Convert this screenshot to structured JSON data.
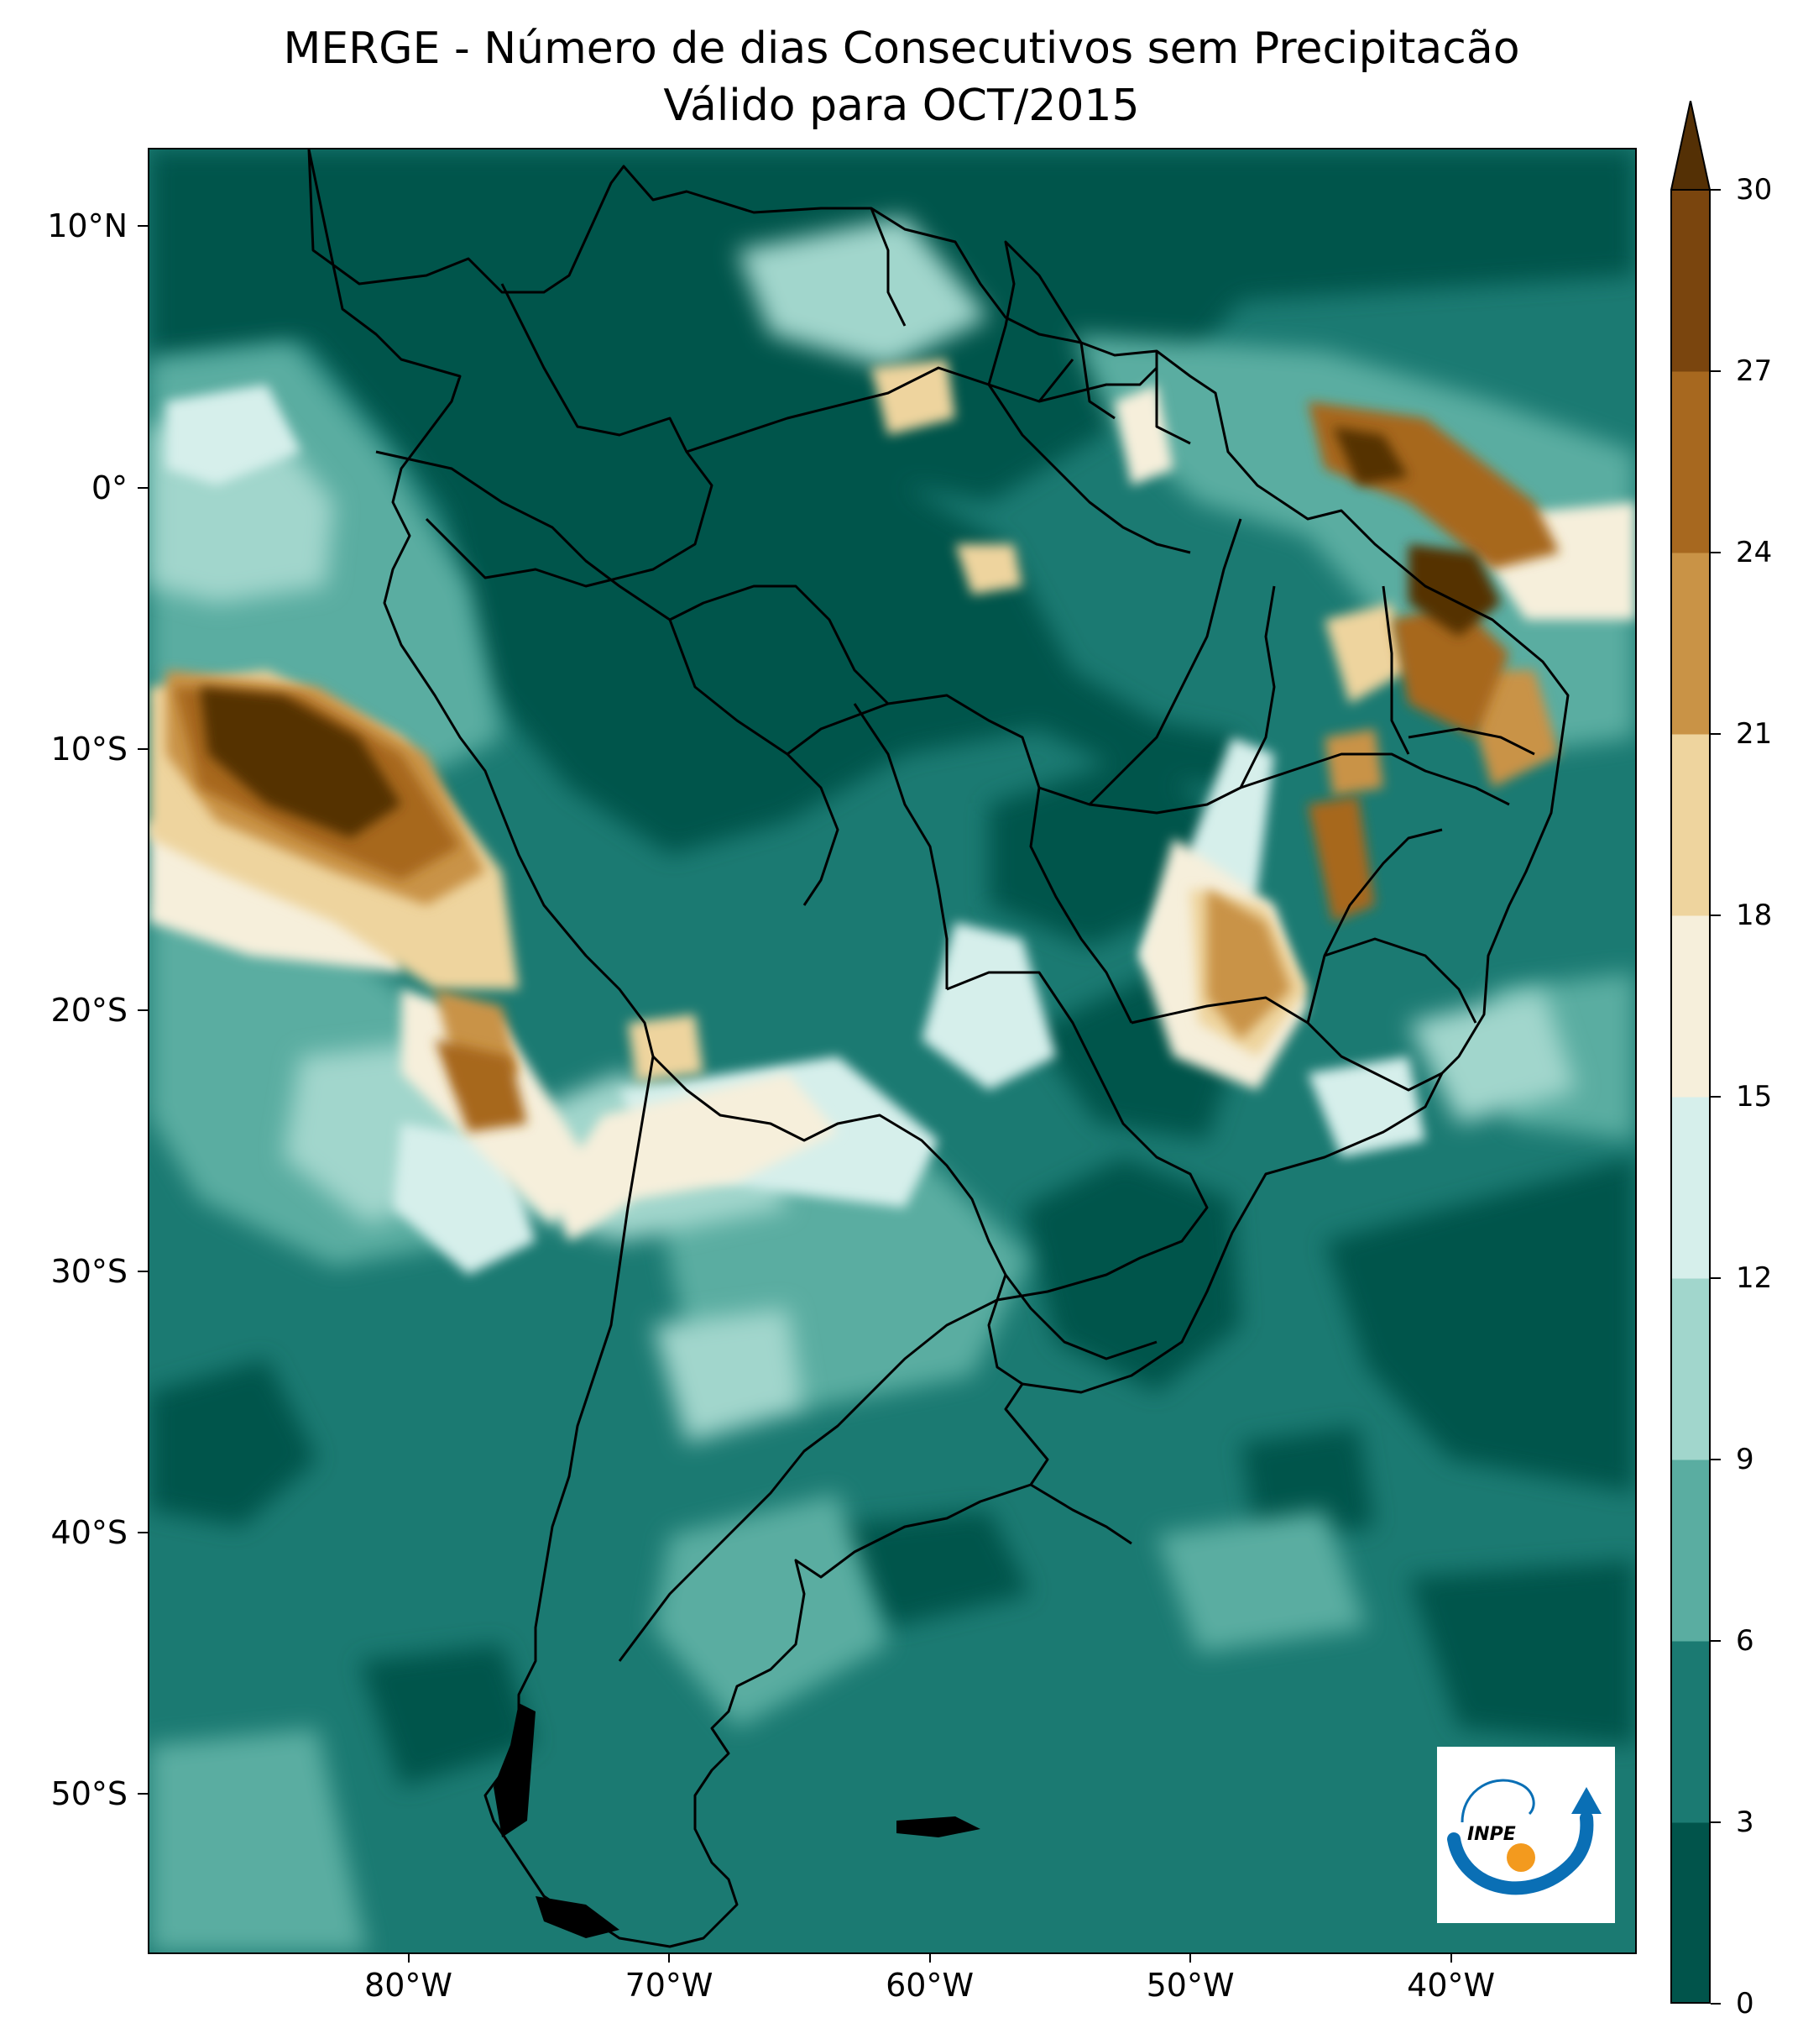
{
  "title": {
    "line1": "MERGE - Número de dias Consecutivos sem Precipitacão",
    "line2": "Válido para OCT/2015"
  },
  "axes": {
    "lat_ticks": [
      {
        "lat": 10,
        "label": "10°N"
      },
      {
        "lat": 0,
        "label": "0°"
      },
      {
        "lat": -10,
        "label": "10°S"
      },
      {
        "lat": -20,
        "label": "20°S"
      },
      {
        "lat": -30,
        "label": "30°S"
      },
      {
        "lat": -40,
        "label": "40°S"
      },
      {
        "lat": -50,
        "label": "50°S"
      }
    ],
    "lon_ticks": [
      {
        "lon": -80,
        "label": "80°W"
      },
      {
        "lon": -70,
        "label": "70°W"
      },
      {
        "lon": -60,
        "label": "60°W"
      },
      {
        "lon": -50,
        "label": "50°W"
      },
      {
        "lon": -40,
        "label": "40°W"
      }
    ],
    "lat_range": [
      -56,
      13
    ],
    "lon_range": [
      -90,
      -33
    ]
  },
  "colorbar": {
    "levels": [
      0,
      3,
      6,
      9,
      12,
      15,
      18,
      21,
      24,
      27,
      30
    ],
    "labels": [
      "0",
      "3",
      "6",
      "9",
      "12",
      "15",
      "18",
      "21",
      "24",
      "27",
      "30"
    ],
    "colors": [
      "#01544b",
      "#1b7a72",
      "#5aada1",
      "#a1d6cc",
      "#d6efeb",
      "#f6efdb",
      "#eed49e",
      "#c99346",
      "#a7681f",
      "#7a450e",
      "#543005"
    ],
    "extend": "max"
  },
  "logo": {
    "text": "INPE",
    "colors": {
      "arc": "#0a6fb5",
      "dot": "#f39a1e"
    }
  }
}
